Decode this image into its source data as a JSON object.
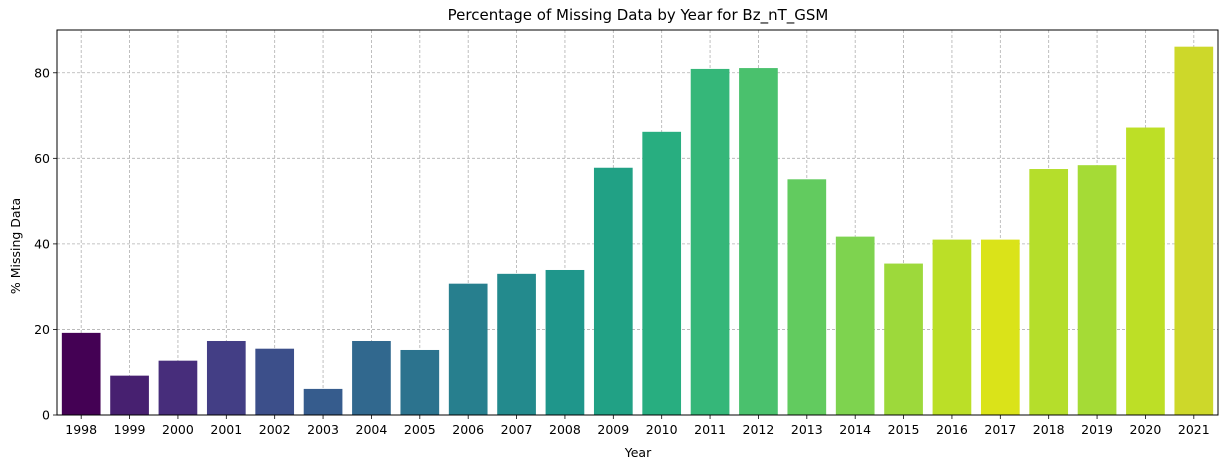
{
  "chart_data": {
    "type": "bar",
    "title": "Percentage of Missing Data by Year for Bz_nT_GSM",
    "xlabel": "Year",
    "ylabel": "% Missing Data",
    "ylim": [
      0,
      90
    ],
    "yticks": [
      0,
      20,
      40,
      60,
      80
    ],
    "grid": true,
    "categories": [
      "1998",
      "1999",
      "2000",
      "2001",
      "2002",
      "2003",
      "2004",
      "2005",
      "2006",
      "2007",
      "2008",
      "2009",
      "2010",
      "2011",
      "2012",
      "2013",
      "2014",
      "2015",
      "2016",
      "2017",
      "2018",
      "2019",
      "2020",
      "2021"
    ],
    "values": [
      19.2,
      9.2,
      12.7,
      17.3,
      15.5,
      6.1,
      17.3,
      15.2,
      30.7,
      33.0,
      33.9,
      57.8,
      66.2,
      80.9,
      81.1,
      55.1,
      41.7,
      35.4,
      41.0,
      41.0,
      57.5,
      58.4,
      67.2,
      86.1
    ],
    "colors": [
      "#440154",
      "#472070",
      "#472D7B",
      "#433E85",
      "#3C4F8A",
      "#365C8D",
      "#31688E",
      "#2C738E",
      "#277F8E",
      "#238A8D",
      "#1F968B",
      "#21A185",
      "#28AE80",
      "#35B779",
      "#4AC16D",
      "#62CB5F",
      "#7ED34F",
      "#9DD93B",
      "#BBDF27",
      "#DAE319",
      "#B5DE2B",
      "#A5DB36",
      "#BDDF26",
      "#CDD82A"
    ]
  }
}
